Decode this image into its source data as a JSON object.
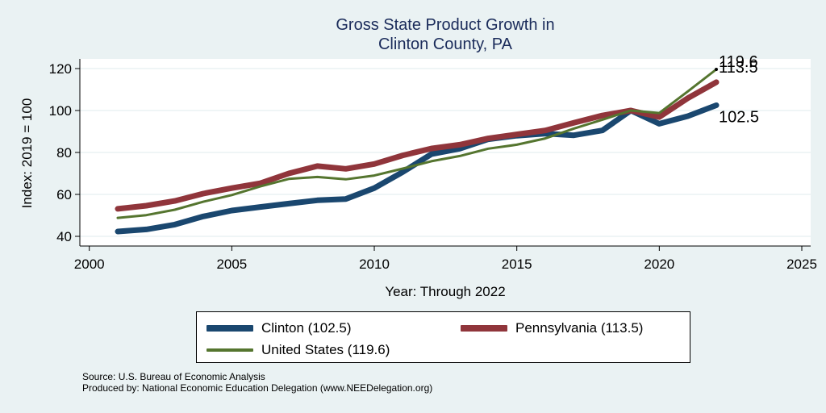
{
  "chart_data": {
    "type": "line",
    "title": "Gross State Product Growth in",
    "subtitle": "Clinton County, PA",
    "xlabel": "Year: Through 2022",
    "ylabel": "Index: 2019 = 100",
    "xlim": [
      2000,
      2025
    ],
    "ylim": [
      40,
      120
    ],
    "xticks": [
      2000,
      2005,
      2010,
      2015,
      2020,
      2025
    ],
    "yticks": [
      40,
      60,
      80,
      100,
      120
    ],
    "grid": true,
    "legend_position": "bottom",
    "x": [
      2001,
      2002,
      2003,
      2004,
      2005,
      2006,
      2007,
      2008,
      2009,
      2010,
      2011,
      2012,
      2013,
      2014,
      2015,
      2016,
      2017,
      2018,
      2019,
      2020,
      2021,
      2022
    ],
    "series": [
      {
        "name": "Clinton",
        "legend_label": "Clinton  (102.5)",
        "color": "#1a476f",
        "values": [
          42.3,
          43.3,
          45.6,
          49.5,
          52.3,
          54.0,
          55.6,
          57.2,
          57.8,
          63.0,
          70.7,
          79.2,
          81.8,
          86.3,
          88.0,
          89.0,
          88.2,
          90.5,
          100.0,
          93.7,
          97.3,
          102.5
        ],
        "end_label": "102.5"
      },
      {
        "name": "Pennsylvania",
        "legend_label": "Pennsylvania (113.5)",
        "color": "#90353b",
        "values": [
          53.1,
          54.6,
          56.9,
          60.4,
          63.0,
          65.3,
          70.0,
          73.5,
          72.2,
          74.5,
          78.6,
          81.9,
          83.7,
          86.7,
          88.6,
          90.5,
          94.1,
          97.6,
          100.0,
          96.9,
          105.9,
          113.5
        ],
        "end_label": "113.5"
      },
      {
        "name": "United States",
        "legend_label": "United States (119.6)",
        "color": "#55752f",
        "values": [
          48.8,
          50.1,
          52.7,
          56.5,
          59.7,
          63.8,
          67.4,
          68.3,
          67.2,
          69.0,
          72.3,
          75.8,
          78.3,
          81.8,
          83.7,
          86.7,
          91.4,
          95.6,
          100.0,
          98.8,
          109.1,
          119.6
        ],
        "end_label": "119.6"
      }
    ]
  },
  "footer": {
    "source": "Source: U.S. Bureau of Economic Analysis",
    "produced_by": "Produced by: National Economic Education Delegation (www.NEEDelegation.org)"
  }
}
